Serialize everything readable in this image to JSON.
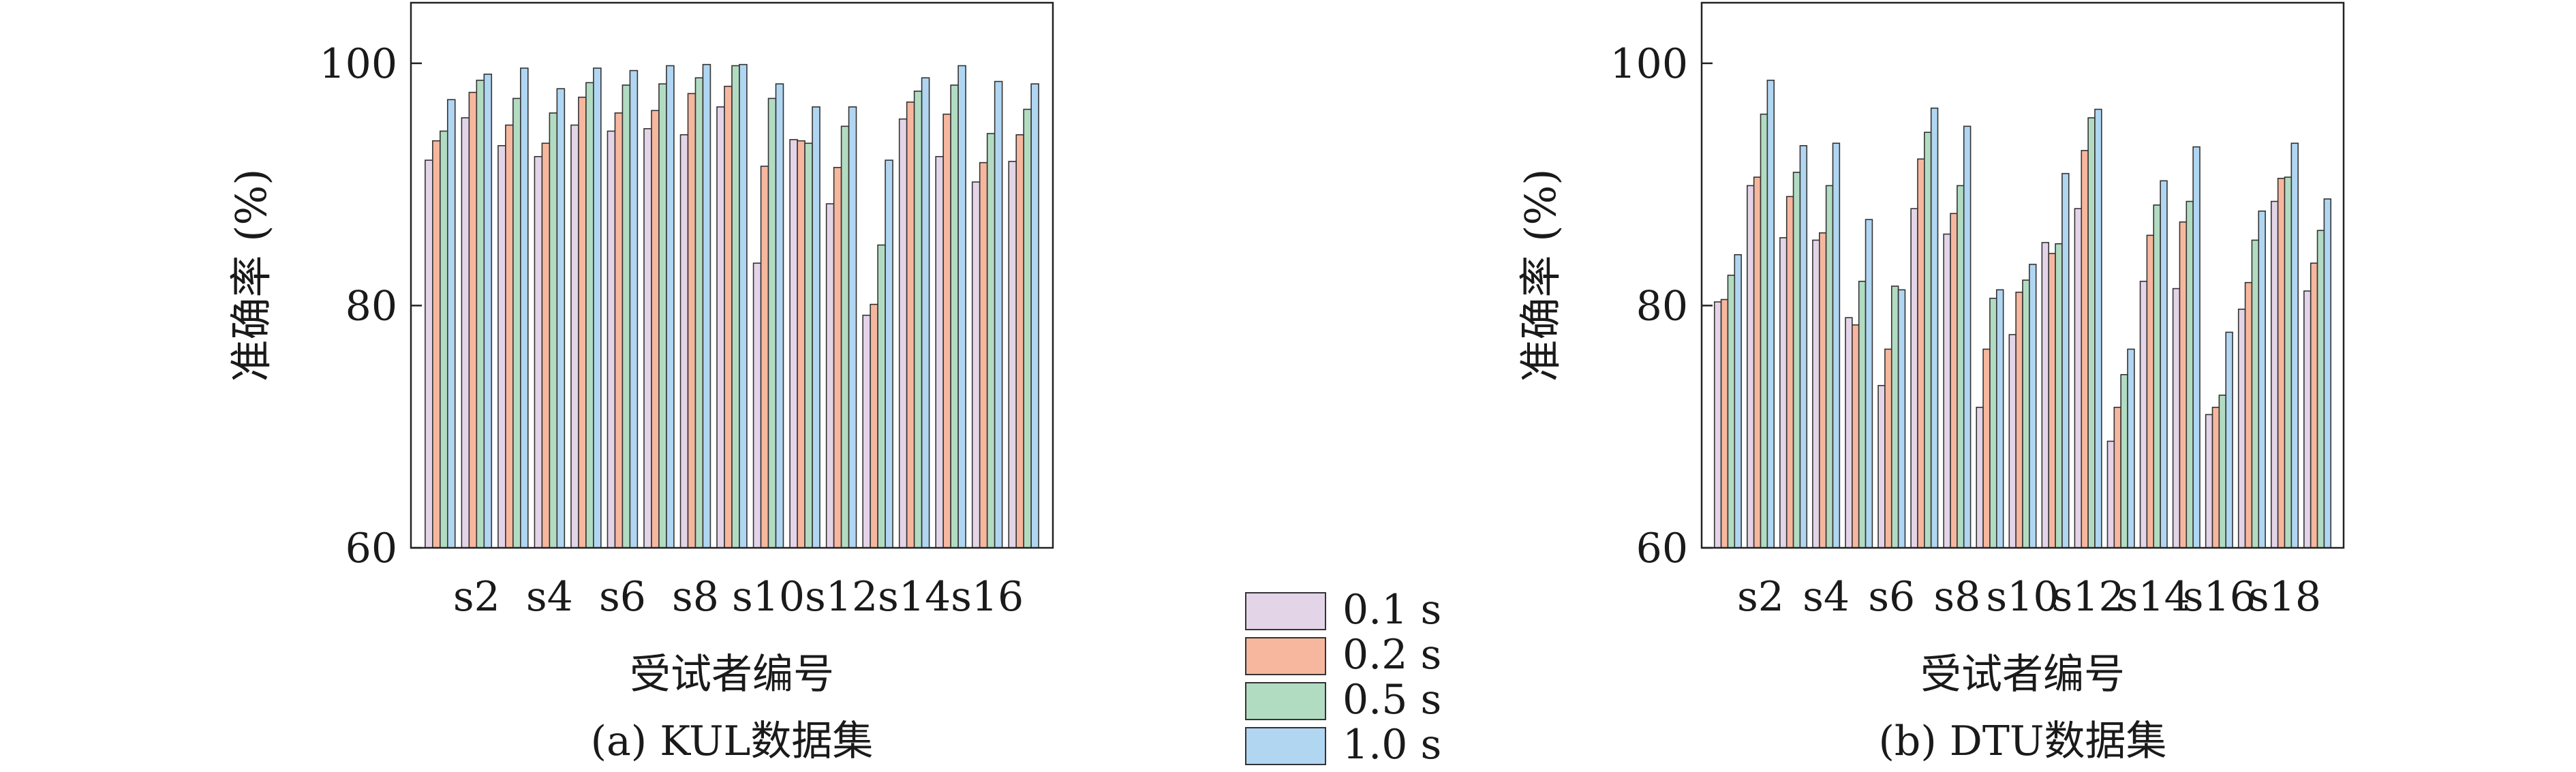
{
  "series_colors": [
    "#e4d4e8",
    "#f7b79e",
    "#b2dcc2",
    "#b0d6f2"
  ],
  "legend": {
    "entries": [
      "0.1 s",
      "0.2 s",
      "0.5 s",
      "1.0 s"
    ]
  },
  "chart_data": [
    {
      "type": "bar",
      "caption": "(a) KUL数据集",
      "xlabel": "受试者编号",
      "ylabel": "准确率 (%)",
      "ylim": [
        60,
        105
      ],
      "yticks": [
        60,
        80,
        100
      ],
      "grid": false,
      "categories": [
        "s1",
        "s2",
        "s3",
        "s4",
        "s5",
        "s6",
        "s7",
        "s8",
        "s9",
        "s10",
        "s11",
        "s12",
        "s13",
        "s14",
        "s15",
        "s16",
        "s17"
      ],
      "tick_labels": [
        "s2",
        "s4",
        "s6",
        "s8",
        "s10",
        "s12",
        "s14",
        "s16"
      ],
      "series": [
        {
          "name": "0.1 s",
          "values": [
            92.0,
            95.5,
            93.2,
            92.3,
            94.9,
            94.4,
            94.6,
            94.1,
            96.4,
            83.5,
            93.7,
            88.4,
            79.2,
            95.4,
            92.3,
            90.2,
            91.9
          ]
        },
        {
          "name": "0.2 s",
          "values": [
            93.6,
            97.6,
            94.9,
            93.4,
            97.2,
            95.9,
            96.1,
            97.5,
            98.1,
            91.5,
            93.6,
            91.4,
            80.1,
            96.8,
            95.8,
            91.8,
            94.1
          ]
        },
        {
          "name": "0.5 s",
          "values": [
            94.4,
            98.6,
            97.1,
            95.9,
            98.4,
            98.2,
            98.3,
            98.8,
            99.8,
            97.1,
            93.4,
            94.8,
            85.0,
            97.7,
            98.2,
            94.2,
            96.2
          ]
        },
        {
          "name": "1.0 s",
          "values": [
            97.0,
            99.1,
            99.6,
            97.9,
            99.6,
            99.4,
            99.8,
            99.9,
            99.9,
            98.3,
            96.4,
            96.4,
            92.0,
            98.8,
            99.8,
            98.5,
            98.3
          ]
        }
      ]
    },
    {
      "type": "bar",
      "caption": "(b) DTU数据集",
      "xlabel": "受试者编号",
      "ylabel": "准确率 (%)",
      "ylim": [
        60,
        105
      ],
      "yticks": [
        60,
        80,
        100
      ],
      "grid": false,
      "categories": [
        "s1",
        "s2",
        "s3",
        "s4",
        "s5",
        "s6",
        "s7",
        "s8",
        "s9",
        "s10",
        "s11",
        "s12",
        "s13",
        "s14",
        "s15",
        "s16",
        "s17",
        "s18",
        "s19"
      ],
      "tick_labels": [
        "s2",
        "s4",
        "s6",
        "s8",
        "s10",
        "s12",
        "s14",
        "s16",
        "s18"
      ],
      "series": [
        {
          "name": "0.1 s",
          "values": [
            80.3,
            89.9,
            85.6,
            85.4,
            79.0,
            73.4,
            88.0,
            85.9,
            71.6,
            77.6,
            85.2,
            88.0,
            68.8,
            82.0,
            81.4,
            71.0,
            79.7,
            88.6,
            81.2
          ]
        },
        {
          "name": "0.2 s",
          "values": [
            80.5,
            90.6,
            89.0,
            86.0,
            78.4,
            76.4,
            92.1,
            87.6,
            76.4,
            81.1,
            84.3,
            92.8,
            71.6,
            85.8,
            86.9,
            71.6,
            81.9,
            90.5,
            83.5
          ]
        },
        {
          "name": "0.5 s",
          "values": [
            82.5,
            95.8,
            91.0,
            89.9,
            82.0,
            81.6,
            94.3,
            89.9,
            80.6,
            82.1,
            85.1,
            95.5,
            74.3,
            88.3,
            88.6,
            72.6,
            85.4,
            90.6,
            86.2
          ]
        },
        {
          "name": "1.0 s",
          "values": [
            84.2,
            98.6,
            93.2,
            93.4,
            87.1,
            81.3,
            96.3,
            94.8,
            81.3,
            83.4,
            90.9,
            96.2,
            76.4,
            90.3,
            93.1,
            77.8,
            87.8,
            93.4,
            88.8
          ]
        }
      ]
    }
  ]
}
